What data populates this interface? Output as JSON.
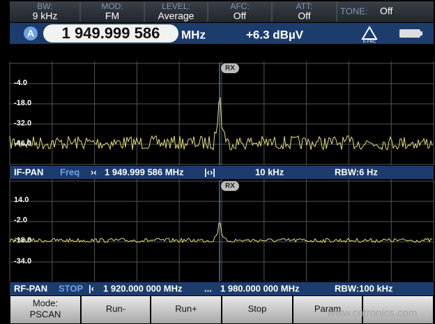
{
  "status_bar": {
    "items": [
      {
        "label": "BW:",
        "value": "9 kHz"
      },
      {
        "label": "MOD:",
        "value": "FM"
      },
      {
        "label": "LEVEL:",
        "value": "Average"
      },
      {
        "label": "AFC:",
        "value": "Off"
      },
      {
        "label": "ATT:",
        "value": "Off"
      }
    ],
    "tone": {
      "label": "TONE:",
      "value": "Off"
    }
  },
  "frequency_bar": {
    "channel": "A",
    "frequency": "1 949.999 586",
    "unit": "MHz",
    "level": "+6.3 dBµV",
    "icon_label": "K-FRC"
  },
  "if_pan": {
    "y_labels": [
      "-4.0",
      "-18.0",
      "-32.0",
      "-46.0"
    ],
    "marker": "RX",
    "info": {
      "mode": "IF-PAN",
      "field": "Freq",
      "center": "1 949.999 586 MHz",
      "span": "10 kHz",
      "rbw": "RBW:6 Hz"
    }
  },
  "rf_pan": {
    "y_labels": [
      "14.0",
      "-2.0",
      "-18.0",
      "-34.0"
    ],
    "marker": "RX",
    "info": {
      "mode": "RF-PAN",
      "state": "STOP",
      "start": "1 920.000 000 MHz",
      "separator": "...",
      "stop": "1 980.000 000 MHz",
      "rbw": "RBW:100 kHz"
    }
  },
  "softkeys": [
    {
      "label": "Mode:",
      "sub": "PSCAN"
    },
    {
      "label": "Run-"
    },
    {
      "label": "Run+"
    },
    {
      "label": "Stop"
    },
    {
      "label": "Param"
    },
    {
      "label": ""
    }
  ],
  "watermark": "www.cntronics.com"
}
